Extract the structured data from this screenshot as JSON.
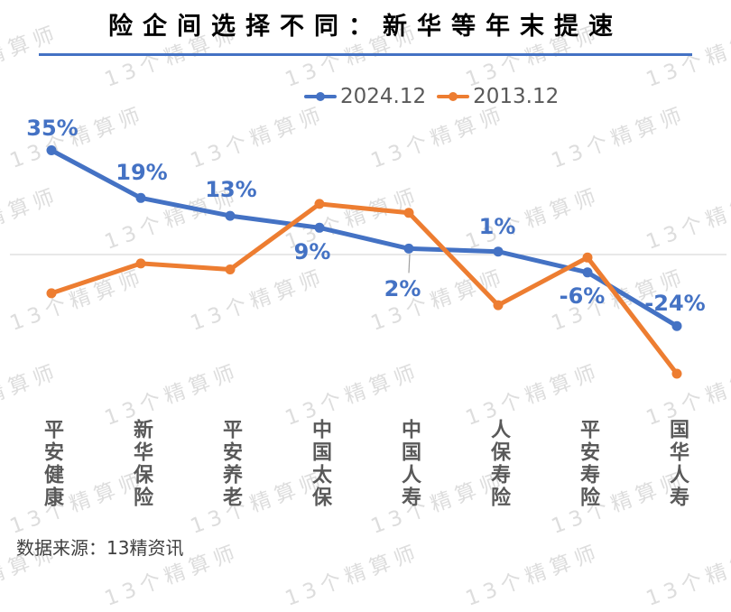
{
  "title": {
    "text": "险企间选择不同：新华等年末提速"
  },
  "footer": {
    "source": "数据来源：13精资讯"
  },
  "watermark": {
    "text": "13个精算师",
    "color": "#d2d2d2"
  },
  "colors": {
    "accent_blue": "#4472C4",
    "accent_orange": "#ED7D31",
    "data_label": "#4472C4",
    "axis_label": "#595959",
    "gridline": "#d0d0d0",
    "leader_line": "#a0a0a0",
    "title_underline": "#4472C4"
  },
  "chart_data": {
    "type": "line",
    "title": "险企间选择不同：新华等年末提速",
    "categories": [
      "平安健康",
      "新华保险",
      "平安养老",
      "中国太保",
      "中国人寿",
      "人保寿险",
      "平安寿险",
      "国华人寿"
    ],
    "series": [
      {
        "name": "2024.12",
        "color": "#4472C4",
        "values": [
          35,
          19,
          13,
          9,
          2,
          1,
          -6,
          -24
        ],
        "point_labels": [
          "35%",
          "19%",
          "13%",
          "9%",
          "2%",
          "1%",
          "-6%",
          "-24%"
        ]
      },
      {
        "name": "2013.12",
        "color": "#ED7D31",
        "values": [
          -13,
          -3,
          -5,
          17,
          14,
          -17,
          -1,
          -40
        ],
        "point_labels": []
      }
    ],
    "xlabel": "",
    "ylabel": "",
    "values_unit": "%",
    "ylim": [
      -45,
      40
    ],
    "gridlines": "zero-line-only",
    "legend_position": "top-center"
  }
}
